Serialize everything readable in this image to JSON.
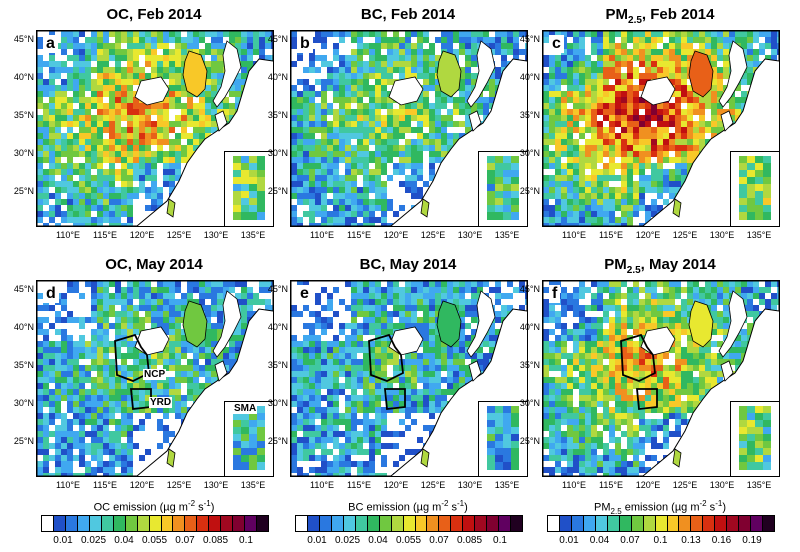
{
  "panels": [
    {
      "letter": "a",
      "species": "OC",
      "sub": "",
      "date": "Feb 2014",
      "palette": "oc",
      "intensity": 0.55
    },
    {
      "letter": "b",
      "species": "BC",
      "sub": "",
      "date": "Feb 2014",
      "palette": "bc",
      "intensity": 0.35
    },
    {
      "letter": "c",
      "species": "PM",
      "sub": "2.5",
      "date": "Feb 2014",
      "palette": "pm",
      "intensity": 0.75
    },
    {
      "letter": "d",
      "species": "OC",
      "sub": "",
      "date": "May 2014",
      "palette": "oc",
      "intensity": 0.25
    },
    {
      "letter": "e",
      "species": "BC",
      "sub": "",
      "date": "May 2014",
      "palette": "bc",
      "intensity": 0.2
    },
    {
      "letter": "f",
      "species": "PM",
      "sub": "2.5",
      "date": "May 2014",
      "palette": "pm",
      "intensity": 0.5
    }
  ],
  "lat_ticks": [
    "45°N",
    "40°N",
    "35°N",
    "30°N",
    "25°N"
  ],
  "lon_ticks": [
    "110°E",
    "115°E",
    "120°E",
    "125°E",
    "130°E",
    "135°E"
  ],
  "regions": [
    "NCP",
    "YRD",
    "SMA"
  ],
  "colorbars": [
    {
      "prefix": "OC emission (",
      "unit_mid": "µg m",
      "exp1": "-2",
      "mid": " s",
      "exp2": "-1",
      "suffix": ")",
      "sub": "",
      "ticks": [
        "0.01",
        "0.025",
        "0.04",
        "0.055",
        "0.07",
        "0.085",
        "0.1"
      ],
      "colors": [
        "#ffffff",
        "#2050c8",
        "#2a78e0",
        "#40a8f0",
        "#50c8e0",
        "#40c8a0",
        "#30b860",
        "#70c840",
        "#b0d840",
        "#e8e830",
        "#f8c828",
        "#f09020",
        "#e86018",
        "#d83010",
        "#c01010",
        "#a00820",
        "#800030",
        "#600060",
        "#200020"
      ]
    },
    {
      "prefix": "BC emission (",
      "unit_mid": "µg m",
      "exp1": "-2",
      "mid": " s",
      "exp2": "-1",
      "suffix": ")",
      "sub": "",
      "ticks": [
        "0.01",
        "0.025",
        "0.04",
        "0.055",
        "0.07",
        "0.085",
        "0.1"
      ],
      "colors": [
        "#ffffff",
        "#2050c8",
        "#2a78e0",
        "#40a8f0",
        "#50c8e0",
        "#40c8a0",
        "#30b860",
        "#70c840",
        "#b0d840",
        "#e8e830",
        "#f8c828",
        "#f09020",
        "#e86018",
        "#d83010",
        "#c01010",
        "#a00820",
        "#800030",
        "#600060",
        "#200020"
      ]
    },
    {
      "prefix": "PM",
      "unit_mid": " emission (µg m",
      "exp1": "-2",
      "mid": " s",
      "exp2": "-1",
      "suffix": ")",
      "sub": "2.5",
      "ticks": [
        "0.01",
        "0.04",
        "0.07",
        "0.1",
        "0.13",
        "0.16",
        "0.19"
      ],
      "colors": [
        "#ffffff",
        "#2050c8",
        "#2a78e0",
        "#40a8f0",
        "#50c8e0",
        "#40c8a0",
        "#30b860",
        "#70c840",
        "#b0d840",
        "#e8e830",
        "#f8c828",
        "#f09020",
        "#e86018",
        "#d83010",
        "#c01010",
        "#a00820",
        "#800030",
        "#600060",
        "#200020"
      ]
    }
  ]
}
